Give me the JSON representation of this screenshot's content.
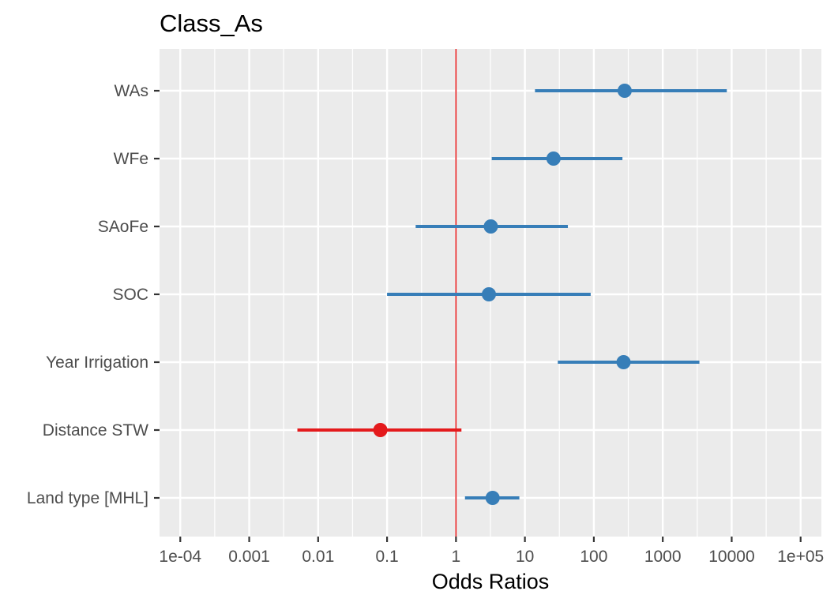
{
  "chart_data": {
    "type": "scatter",
    "title": "Class_As",
    "xlabel": "Odds Ratios",
    "ylabel": "",
    "x_scale": "log10",
    "xlim": [
      5e-05,
      200000
    ],
    "x_ticks": [
      {
        "value": 0.0001,
        "label": "1e-04"
      },
      {
        "value": 0.001,
        "label": "0.001"
      },
      {
        "value": 0.01,
        "label": "0.01"
      },
      {
        "value": 0.1,
        "label": "0.1"
      },
      {
        "value": 1,
        "label": "1"
      },
      {
        "value": 10,
        "label": "10"
      },
      {
        "value": 100,
        "label": "100"
      },
      {
        "value": 1000,
        "label": "1000"
      },
      {
        "value": 10000,
        "label": "10000"
      },
      {
        "value": 100000,
        "label": "1e+05"
      }
    ],
    "reference_line": {
      "x": 1,
      "color": "#e41a1c"
    },
    "grid": true,
    "legend": "none",
    "colors": {
      "positive": "#377eb8",
      "negative": "#e41a1c",
      "panel": "#ebebeb",
      "grid": "#ffffff"
    },
    "terms": [
      {
        "label": "WAs",
        "estimate": 280,
        "low": 14,
        "high": 8500,
        "direction": "positive"
      },
      {
        "label": "WFe",
        "estimate": 26,
        "low": 3.3,
        "high": 260,
        "direction": "positive"
      },
      {
        "label": "SAoFe",
        "estimate": 3.2,
        "low": 0.26,
        "high": 42,
        "direction": "positive"
      },
      {
        "label": "SOC",
        "estimate": 3.0,
        "low": 0.1,
        "high": 90,
        "direction": "positive"
      },
      {
        "label": "Year Irrigation",
        "estimate": 270,
        "low": 30,
        "high": 3400,
        "direction": "positive"
      },
      {
        "label": "Distance STW",
        "estimate": 0.08,
        "low": 0.005,
        "high": 1.2,
        "direction": "negative"
      },
      {
        "label": "Land type [MHL]",
        "estimate": 3.4,
        "low": 1.35,
        "high": 8.3,
        "direction": "positive"
      }
    ]
  }
}
